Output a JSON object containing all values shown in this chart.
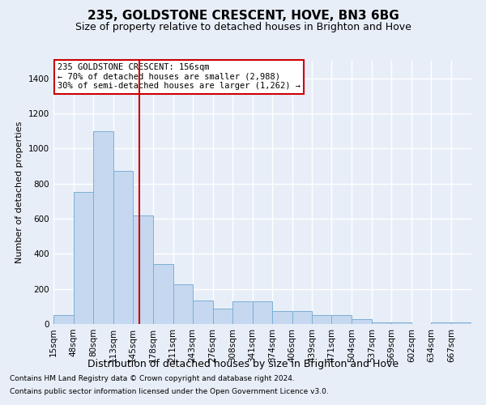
{
  "title1": "235, GOLDSTONE CRESCENT, HOVE, BN3 6BG",
  "title2": "Size of property relative to detached houses in Brighton and Hove",
  "xlabel": "Distribution of detached houses by size in Brighton and Hove",
  "ylabel": "Number of detached properties",
  "footnote1": "Contains HM Land Registry data © Crown copyright and database right 2024.",
  "footnote2": "Contains public sector information licensed under the Open Government Licence v3.0.",
  "annotation_line1": "235 GOLDSTONE CRESCENT: 156sqm",
  "annotation_line2": "← 70% of detached houses are smaller (2,988)",
  "annotation_line3": "30% of semi-detached houses are larger (1,262) →",
  "bar_color": "#c5d8f0",
  "bar_edge_color": "#7aafd4",
  "vline_x": 156,
  "vline_color": "#cc0000",
  "categories": [
    "15sqm",
    "48sqm",
    "80sqm",
    "113sqm",
    "145sqm",
    "178sqm",
    "211sqm",
    "243sqm",
    "276sqm",
    "308sqm",
    "341sqm",
    "374sqm",
    "406sqm",
    "439sqm",
    "471sqm",
    "504sqm",
    "537sqm",
    "569sqm",
    "602sqm",
    "634sqm",
    "667sqm"
  ],
  "bin_edges": [
    15,
    48,
    80,
    113,
    145,
    178,
    211,
    243,
    276,
    308,
    341,
    374,
    406,
    439,
    471,
    504,
    537,
    569,
    602,
    634,
    667,
    700
  ],
  "heights": [
    50,
    750,
    1100,
    870,
    620,
    340,
    225,
    135,
    90,
    130,
    130,
    75,
    75,
    50,
    50,
    30,
    8,
    8,
    0,
    8,
    8
  ],
  "ylim": [
    0,
    1500
  ],
  "yticks": [
    0,
    200,
    400,
    600,
    800,
    1000,
    1200,
    1400
  ],
  "background_color": "#e8eef8",
  "plot_bg_color": "#e8eef8",
  "grid_color": "#ffffff",
  "annotation_box_color": "#ffffff",
  "annotation_box_edge": "#cc0000",
  "title1_fontsize": 11,
  "title2_fontsize": 9,
  "xlabel_fontsize": 9,
  "ylabel_fontsize": 8,
  "tick_fontsize": 7.5,
  "footnote_fontsize": 6.5
}
